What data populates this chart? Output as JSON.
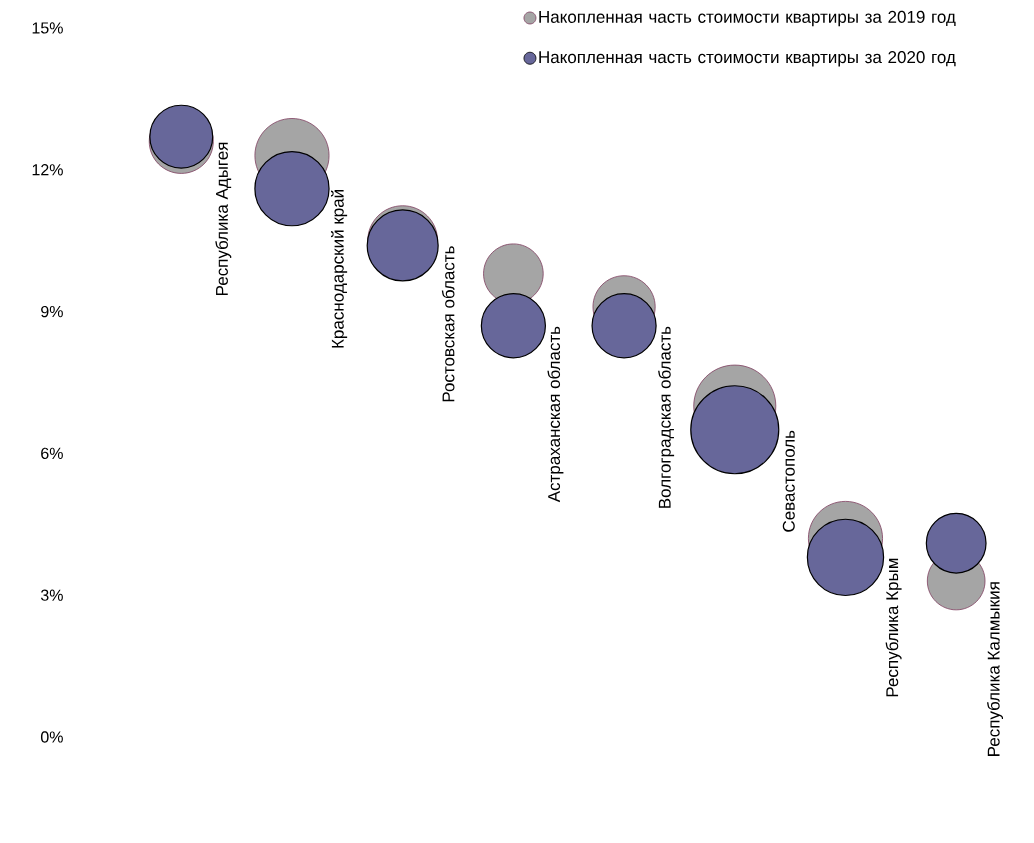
{
  "chart_data": {
    "type": "bubble",
    "categories": [
      "Республика Адыгея",
      "Краснодарский край",
      "Ростовская область",
      "Астраханская область",
      "Волгоградская область",
      "Севастополь",
      "Республика Крым",
      "Республика Калмыкия"
    ],
    "series": [
      {
        "name": "Накопленная часть стоимости квартиры за 2019 год",
        "color": "#a5a5a5",
        "values": [
          12.6,
          12.3,
          10.5,
          9.8,
          9.1,
          7.0,
          4.2,
          3.3
        ],
        "sizes": [
          0.53,
          0.71,
          0.63,
          0.46,
          0.5,
          0.87,
          0.71,
          0.43
        ]
      },
      {
        "name": "Накопленная часть стоимости квартиры за 2020 год",
        "color": "#67679a",
        "values": [
          12.7,
          11.6,
          10.4,
          8.7,
          8.7,
          6.5,
          3.8,
          4.1
        ],
        "sizes": [
          0.51,
          0.71,
          0.65,
          0.53,
          0.53,
          1,
          0.75,
          0.46
        ]
      }
    ],
    "ylim": [
      0,
      15
    ],
    "yticks": [
      {
        "value": 0,
        "label": "0%"
      },
      {
        "value": 3,
        "label": "3%"
      },
      {
        "value": 6,
        "label": "6%"
      },
      {
        "value": 9,
        "label": "9%"
      },
      {
        "value": 12,
        "label": "12%"
      },
      {
        "value": 15,
        "label": "15%"
      }
    ],
    "legend": "top right"
  }
}
